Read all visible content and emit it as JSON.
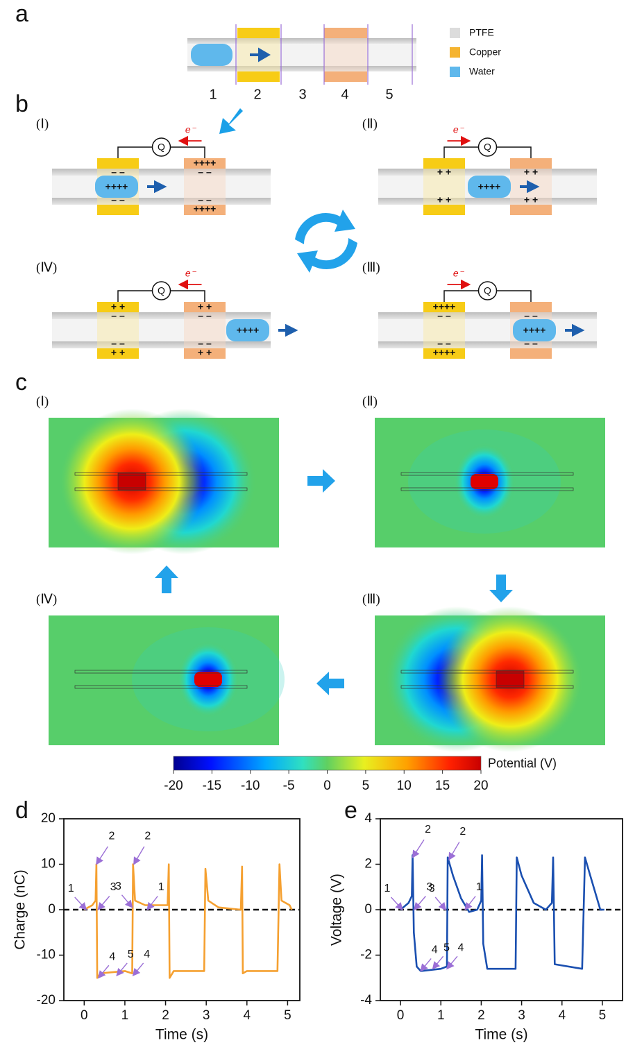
{
  "panel_labels": [
    "a",
    "b",
    "c",
    "d",
    "e"
  ],
  "legend": [
    "PTFE",
    "Copper",
    "Water"
  ],
  "segments": [
    "1",
    "2",
    "3",
    "4",
    "5"
  ],
  "meter": "Q",
  "electron": "e⁻",
  "states": [
    {
      "label": "(Ⅰ)",
      "water": "++++",
      "left": {
        "top": [
          "– –"
        ],
        "bottom": [
          "– –"
        ]
      },
      "right": {
        "top": [
          "++++",
          "– –"
        ],
        "bottom": [
          "– –",
          "++++"
        ]
      }
    },
    {
      "label": "(Ⅱ)",
      "water": "++++",
      "left": {
        "top": [
          "+ +"
        ],
        "bottom": [
          "+ +"
        ]
      },
      "right": {
        "top": [
          "+ +"
        ],
        "bottom": [
          "+ +"
        ]
      }
    },
    {
      "label": "(Ⅲ)",
      "water": "++++",
      "left": {
        "top": [
          "++++",
          "– –"
        ],
        "bottom": [
          "– –",
          "++++"
        ]
      },
      "right": {
        "top": [
          "– –"
        ],
        "bottom": [
          "– –"
        ]
      }
    },
    {
      "label": "(Ⅳ)",
      "water": "++++",
      "left": {
        "top": [
          "+ +",
          "– –"
        ],
        "bottom": [
          "– –",
          "+ +"
        ]
      },
      "right": {
        "top": [
          "+ +",
          "– –"
        ],
        "bottom": [
          "– –",
          "+ +"
        ]
      }
    }
  ],
  "maps": [
    "(Ⅰ)",
    "(Ⅱ)",
    "(Ⅲ)",
    "(Ⅳ)"
  ],
  "colorbar": {
    "label": "Potential (V)",
    "ticks": [
      -20,
      -15,
      -10,
      -5,
      0,
      5,
      10,
      15,
      20
    ]
  },
  "chart_data": [
    {
      "type": "line",
      "x_label": "Time (s)",
      "y_label": "Charge (nC)",
      "color": "#f5a030",
      "xlim": [
        -0.5,
        5.3
      ],
      "ylim": [
        -20,
        20
      ],
      "xticks": [
        0,
        1,
        2,
        3,
        4,
        5
      ],
      "yticks": [
        -20,
        -10,
        0,
        10,
        20
      ],
      "hline": 0,
      "x": [
        0,
        0.2,
        0.28,
        0.3,
        0.32,
        0.4,
        1.0,
        1.18,
        1.2,
        1.25,
        1.5,
        2.05,
        2.08,
        2.1,
        2.2,
        2.95,
        2.98,
        3.05,
        3.3,
        3.85,
        3.88,
        3.9,
        4.0,
        4.75,
        4.8,
        4.85,
        5.05,
        5.1
      ],
      "values": [
        0,
        1,
        2,
        10,
        -15,
        -14,
        -13.5,
        -14,
        10,
        2,
        1,
        1,
        10,
        -15,
        -13.5,
        -13.5,
        9,
        2,
        0.5,
        0,
        9.5,
        -14,
        -13.5,
        -13.5,
        10,
        2,
        1,
        0
      ],
      "annotations": [
        {
          "text": "1",
          "x": 0.05,
          "y": 0
        },
        {
          "text": "2",
          "x": 0.3,
          "y": 10
        },
        {
          "text": "3",
          "x": 0.34,
          "y": 0
        },
        {
          "text": "4",
          "x": 0.35,
          "y": -15
        },
        {
          "text": "5",
          "x": 0.8,
          "y": -14.5
        },
        {
          "text": "4",
          "x": 1.2,
          "y": -14.5
        },
        {
          "text": "3",
          "x": 1.18,
          "y": 0.5
        },
        {
          "text": "2",
          "x": 1.22,
          "y": 10
        },
        {
          "text": "1",
          "x": 1.55,
          "y": 0
        }
      ]
    },
    {
      "type": "line",
      "x_label": "Time (s)",
      "y_label": "Voltage (V)",
      "color": "#1a4fb0",
      "xlim": [
        -0.5,
        5.5
      ],
      "ylim": [
        -4,
        4
      ],
      "xticks": [
        0,
        1,
        2,
        3,
        4,
        5
      ],
      "yticks": [
        -4,
        -2,
        0,
        2,
        4
      ],
      "hline": 0,
      "x": [
        0,
        0.2,
        0.28,
        0.3,
        0.33,
        0.4,
        0.5,
        1.0,
        1.15,
        1.17,
        1.3,
        1.5,
        1.7,
        1.9,
        2.0,
        2.02,
        2.05,
        2.15,
        2.85,
        2.88,
        3.0,
        3.3,
        3.6,
        3.75,
        3.78,
        3.82,
        4.5,
        4.57,
        4.7,
        4.95,
        5.05
      ],
      "values": [
        0,
        0.3,
        0.6,
        2.4,
        -1,
        -2.5,
        -2.7,
        -2.6,
        -2.5,
        2.3,
        1.5,
        0.5,
        -0.1,
        0,
        0.4,
        2.4,
        -1.5,
        -2.6,
        -2.6,
        2.3,
        1.5,
        0.3,
        0,
        0.3,
        2.3,
        -2.4,
        -2.6,
        2.3,
        1.5,
        0,
        0
      ],
      "annotations": [
        {
          "text": "1",
          "x": 0.05,
          "y": 0
        },
        {
          "text": "2",
          "x": 0.3,
          "y": 2.3
        },
        {
          "text": "3",
          "x": 0.34,
          "y": 0
        },
        {
          "text": "4",
          "x": 0.5,
          "y": -2.7
        },
        {
          "text": "5",
          "x": 0.8,
          "y": -2.6
        },
        {
          "text": "4",
          "x": 1.15,
          "y": -2.6
        },
        {
          "text": "3",
          "x": 1.12,
          "y": 0
        },
        {
          "text": "2",
          "x": 1.2,
          "y": 2.2
        },
        {
          "text": "1",
          "x": 1.6,
          "y": 0
        }
      ]
    }
  ]
}
